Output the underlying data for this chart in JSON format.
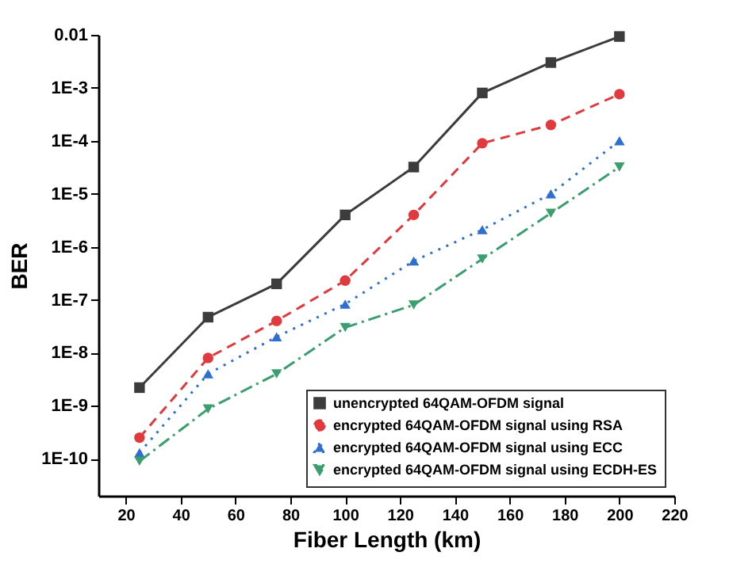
{
  "chart_data": {
    "type": "line",
    "xlabel": "Fiber Length (km)",
    "ylabel": "BER",
    "log": "y",
    "x": [
      25,
      50,
      75,
      100,
      125,
      150,
      175,
      200
    ],
    "xlim": [
      10,
      220
    ],
    "xticks": [
      20,
      40,
      60,
      80,
      100,
      120,
      140,
      160,
      180,
      200,
      220
    ],
    "ylim": [
      2e-11,
      0.01
    ],
    "yticks": [
      {
        "value": 0.01,
        "label": "0.01"
      },
      {
        "value": 0.001,
        "label": "1E-3"
      },
      {
        "value": 0.0001,
        "label": "1E-4"
      },
      {
        "value": 1e-05,
        "label": "1E-5"
      },
      {
        "value": 1e-06,
        "label": "1E-6"
      },
      {
        "value": 1e-07,
        "label": "1E-7"
      },
      {
        "value": 1e-08,
        "label": "1E-8"
      },
      {
        "value": 1e-09,
        "label": "1E-9"
      },
      {
        "value": 1e-10,
        "label": "1E-10"
      }
    ],
    "legend": "bottom right",
    "grid": false,
    "series": [
      {
        "name": "unencrypted 64QAM-OFDM signal",
        "color": "#3c3c3c",
        "marker": "square",
        "line_style": "solid",
        "values": [
          2.2e-09,
          4.7e-08,
          2e-07,
          4e-06,
          3.2e-05,
          0.0008,
          0.003,
          0.0093
        ]
      },
      {
        "name": "encrypted 64QAM-OFDM signal using RSA",
        "color": "#e0393e",
        "marker": "circle",
        "line_style": "dashed",
        "values": [
          2.5e-10,
          8e-09,
          4e-08,
          2.3e-07,
          4e-06,
          9e-05,
          0.0002,
          0.00076
        ]
      },
      {
        "name": "encrypted 64QAM-OFDM signal using ECC",
        "color": "#2f6fd0",
        "marker": "triangle",
        "line_style": "dotted",
        "values": [
          1.3e-10,
          4e-09,
          2e-08,
          8.3e-08,
          5.4e-07,
          2.1e-06,
          1e-05,
          0.0001
        ]
      },
      {
        "name": "encrypted 64QAM-OFDM signal using ECDH-ES",
        "color": "#3a9e6e",
        "marker": "triangle-down",
        "line_style": "dashdot",
        "values": [
          9e-11,
          8.7e-10,
          4e-09,
          3e-08,
          8e-08,
          5.9e-07,
          4.3e-06,
          3.2e-05
        ]
      }
    ]
  }
}
